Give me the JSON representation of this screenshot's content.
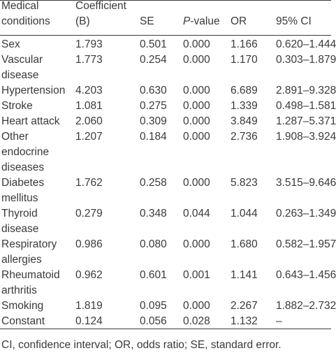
{
  "table": {
    "headers": {
      "condition": [
        "Medical",
        "conditions"
      ],
      "coef": [
        "Coefficient",
        "(B)"
      ],
      "se": "SE",
      "p_italic": "P",
      "p_rest": "-value",
      "or": "OR",
      "ci": "95% CI"
    },
    "rows": [
      {
        "condition": [
          "Sex"
        ],
        "coef": "1.793",
        "se": "0.501",
        "p": "0.000",
        "or": "1.166",
        "ci": "0.620–1.444"
      },
      {
        "condition": [
          "Vascular",
          "disease"
        ],
        "coef": "1.773",
        "se": "0.254",
        "p": "0.000",
        "or": "1.170",
        "ci": "0.303–1.879"
      },
      {
        "condition": [
          "Hypertension"
        ],
        "coef": "4.203",
        "se": "0.630",
        "p": "0.000",
        "or": "6.689",
        "ci": "2.891–9.328"
      },
      {
        "condition": [
          "Stroke"
        ],
        "coef": "1.081",
        "se": "0.275",
        "p": "0.000",
        "or": "1.339",
        "ci": "0.498–1.581"
      },
      {
        "condition": [
          "Heart attack"
        ],
        "coef": "2.060",
        "se": "0.309",
        "p": "0.000",
        "or": "3.849",
        "ci": "1.287–5.371"
      },
      {
        "condition": [
          "Other",
          "endocrine",
          "diseases"
        ],
        "coef": "1.207",
        "se": "0.184",
        "p": "0.000",
        "or": "2.736",
        "ci": "1.908–3.924"
      },
      {
        "condition": [
          "Diabetes",
          "mellitus"
        ],
        "coef": "1.762",
        "se": "0.258",
        "p": "0.000",
        "or": "5.823",
        "ci": "3.515–9.646"
      },
      {
        "condition": [
          "Thyroid",
          "disease"
        ],
        "coef": "0.279",
        "se": "0.348",
        "p": "0.044",
        "or": "1.044",
        "ci": "0.263–1.349"
      },
      {
        "condition": [
          "Respiratory",
          "allergies"
        ],
        "coef": "0.986",
        "se": "0.080",
        "p": "0.000",
        "or": "1.680",
        "ci": "0.582–1.957"
      },
      {
        "condition": [
          "Rheumatoid",
          "arthritis"
        ],
        "coef": "0.962",
        "se": "0.601",
        "p": "0.001",
        "or": "1.141",
        "ci": "0.643–1.456"
      },
      {
        "condition": [
          "Smoking"
        ],
        "coef": "1.819",
        "se": "0.095",
        "p": "0.000",
        "or": "2.267",
        "ci": "1.882–2.732"
      },
      {
        "condition": [
          "Constant"
        ],
        "coef": "0.124",
        "se": "0.056",
        "p": "0.028",
        "or": "1.132",
        "ci": "–"
      }
    ]
  },
  "footnote": "CI, confidence interval; OR, odds ratio; SE, standard error."
}
